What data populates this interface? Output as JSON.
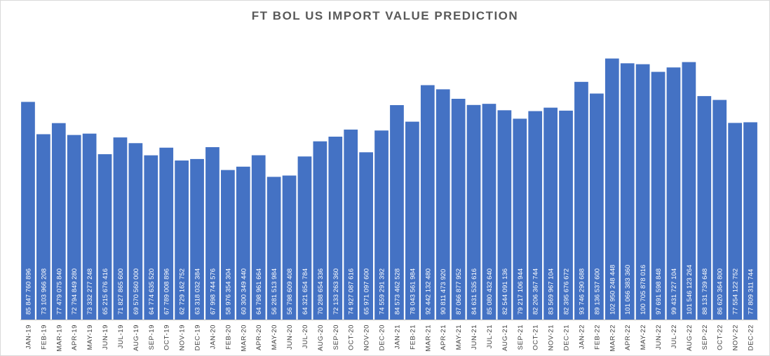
{
  "chart_data": {
    "type": "bar",
    "title": "FT BOL US IMPORT VALUE PREDICTION",
    "xlabel": "",
    "ylabel": "",
    "ylim": [
      0,
      110000000000
    ],
    "grid": false,
    "bar_color": "#4472c4",
    "label_color": "#ffffff",
    "categories": [
      "JAN-19",
      "FEB-19",
      "MAR-19",
      "APR-19",
      "MAY-19",
      "JUN-19",
      "JUL-19",
      "AUG-19",
      "SEP-19",
      "OCT-19",
      "NOV-19",
      "DEC-19",
      "JAN-20",
      "FEB-20",
      "MAR-20",
      "APR-20",
      "MAY-20",
      "JUN-20",
      "JUL-20",
      "AUG-20",
      "SEP-20",
      "OCT-20",
      "NOV-20",
      "DEC-20",
      "JAN-21",
      "FEB-21",
      "MAR-21",
      "APR-21",
      "MAY-21",
      "JUN-21",
      "JUL-21",
      "AUG-21",
      "SEP-21",
      "OCT-21",
      "NOV-21",
      "DEC-21",
      "JAN-22",
      "FEB-22",
      "MAR-22",
      "APR-22",
      "MAY-22",
      "JUN-22",
      "JUL-22",
      "AUG-22",
      "SEP-22",
      "OCT-22",
      "NOV-22",
      "DEC-22"
    ],
    "values": [
      85847760896,
      73103966208,
      77479075840,
      72794849280,
      73332277248,
      65215676416,
      71827865600,
      69570560000,
      64774635520,
      67789008896,
      62729162752,
      63318032384,
      67998744576,
      58976354304,
      60300349440,
      64798961664,
      56281513984,
      56798609408,
      64321654784,
      70288654336,
      72133263360,
      74927087616,
      65971097600,
      74559291392,
      84573462528,
      78043561984,
      92442132480,
      90811473920,
      87066877952,
      84631535616,
      85080432640,
      82544091136,
      79217106944,
      82206367744,
      83569967104,
      82395676672,
      93746290688,
      89136537600,
      102950248448,
      101066383360,
      100705878016,
      97691598848,
      99431727104,
      101546123264,
      88131739648,
      86620364800,
      77554122752,
      77809311744
    ],
    "labels": [
      "85 847 760 896",
      "73 103 966 208",
      "77 479 075 840",
      "72 794 849 280",
      "73 332 277 248",
      "65 215 676 416",
      "71 827 865 600",
      "69 570 560 000",
      "64 774 635 520",
      "67 789 008 896",
      "62 729 162 752",
      "63 318 032 384",
      "67 998 744 576",
      "58 976 354 304",
      "60 300 349 440",
      "64 798 961 664",
      "56 281 513 984",
      "56 798 609 408",
      "64 321 654 784",
      "70 288 654 336",
      "72 133 263 360",
      "74 927 087 616",
      "65 971 097 600",
      "74 559 291 392",
      "84 573 462 528",
      "78 043 561 984",
      "92 442 132 480",
      "90 811 473 920",
      "87 066 877 952",
      "84 631 535 616",
      "85 080 432 640",
      "82 544 091 136",
      "79 217 106 944",
      "82 206 367 744",
      "83 569 967 104",
      "82 395 676 672",
      "93 746 290 688",
      "89 136 537 600",
      "102 950 248 448",
      "101 066 383 360",
      "100 705 878 016",
      "97 691 598 848",
      "99 431 727 104",
      "101 546 123 264",
      "88 131 739 648",
      "86 620 364 800",
      "77 554 122 752",
      "77 809 311 744"
    ]
  }
}
